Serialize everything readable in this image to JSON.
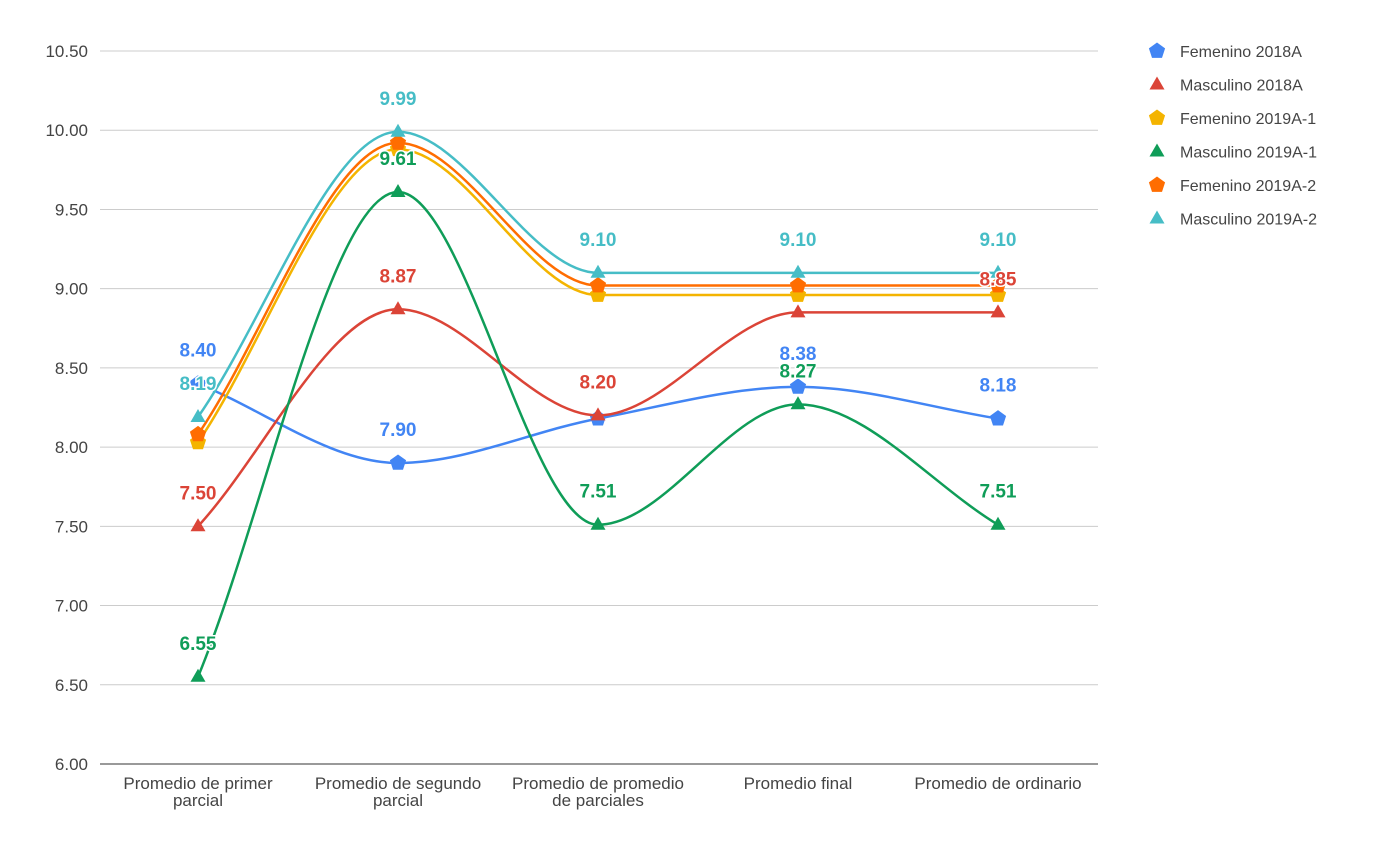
{
  "chart_data": {
    "type": "line",
    "title": "",
    "xlabel": "",
    "ylabel": "",
    "ylim": [
      6.0,
      10.5
    ],
    "yticks": [
      "6.00",
      "6.50",
      "7.00",
      "7.50",
      "8.00",
      "8.50",
      "9.00",
      "9.50",
      "10.00",
      "10.50"
    ],
    "grid": true,
    "smooth": true,
    "legend_position": "right",
    "categories": [
      [
        "Promedio de primer",
        "parcial"
      ],
      [
        "Promedio de segundo",
        "parcial"
      ],
      [
        "Promedio de promedio",
        "de parciales"
      ],
      [
        "Promedio final"
      ],
      [
        "Promedio de ordinario"
      ]
    ],
    "series": [
      {
        "name": "Femenino 2018A",
        "color": "#4285f4",
        "marker": "pentagon",
        "values": [
          8.4,
          7.9,
          8.18,
          8.38,
          8.18
        ],
        "labels": [
          "8.40",
          "7.90",
          "",
          "8.38",
          "8.18"
        ]
      },
      {
        "name": "Masculino 2018A",
        "color": "#db4437",
        "marker": "triangle",
        "values": [
          7.5,
          8.87,
          8.2,
          8.85,
          8.85
        ],
        "labels": [
          "7.50",
          "8.87",
          "8.20",
          "",
          "8.85"
        ]
      },
      {
        "name": "Femenino 2019A-1",
        "color": "#f4b400",
        "marker": "pentagon",
        "values": [
          8.03,
          9.88,
          8.96,
          8.96,
          8.96
        ],
        "labels": [
          "",
          "",
          "",
          "",
          ""
        ]
      },
      {
        "name": "Masculino 2019A-1",
        "color": "#0f9d58",
        "marker": "triangle",
        "values": [
          6.55,
          9.61,
          7.51,
          8.27,
          7.51
        ],
        "labels": [
          "6.55",
          "9.61",
          "7.51",
          "8.27",
          "7.51"
        ]
      },
      {
        "name": "Femenino 2019A-2",
        "color": "#ff6d01",
        "marker": "pentagon",
        "values": [
          8.08,
          9.92,
          9.02,
          9.02,
          9.02
        ],
        "labels": [
          "",
          "",
          "",
          "",
          ""
        ]
      },
      {
        "name": "Masculino 2019A-2",
        "color": "#46bdc6",
        "marker": "triangle",
        "values": [
          8.19,
          9.99,
          9.1,
          9.1,
          9.1
        ],
        "labels": [
          "8.19",
          "9.99",
          "9.10",
          "9.10",
          "9.10"
        ]
      }
    ]
  }
}
